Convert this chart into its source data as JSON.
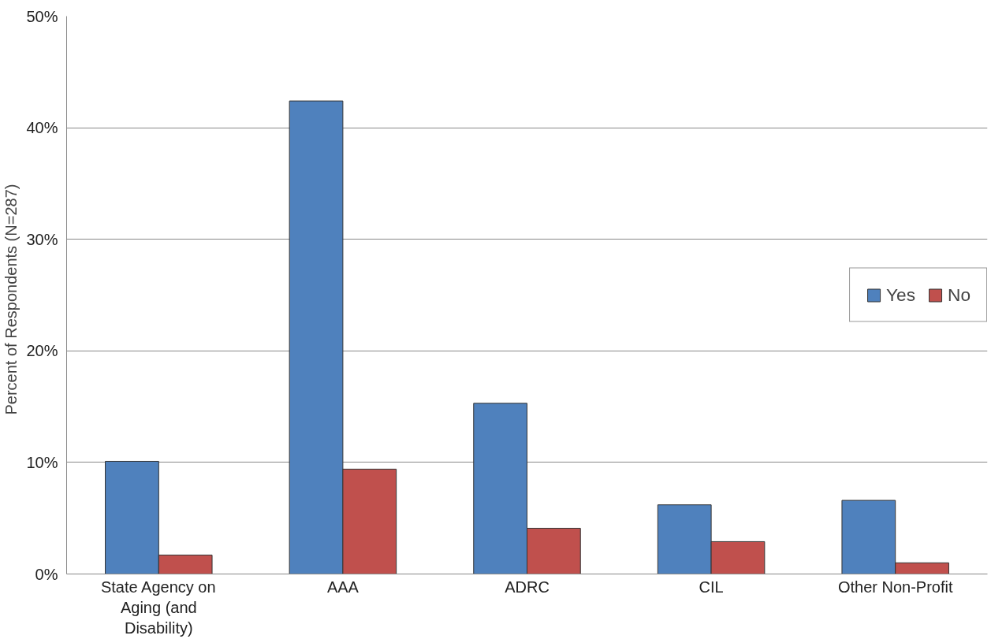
{
  "chart_data": {
    "type": "bar",
    "ylabel": "Percent of Respondents   (N=287)",
    "categories": [
      "State Agency on Aging (and Disability)",
      "AAA",
      "ADRC",
      "CIL",
      "Other Non-Profit"
    ],
    "series": [
      {
        "name": "Yes",
        "color": "#4f81bd",
        "values": [
          10.1,
          42.4,
          15.3,
          6.2,
          6.6
        ]
      },
      {
        "name": "No",
        "color": "#c0504d",
        "values": [
          1.7,
          9.4,
          4.1,
          2.9,
          1.0
        ]
      }
    ],
    "ylim": [
      0,
      50
    ],
    "yticks": [
      {
        "value": 0,
        "label": "0%"
      },
      {
        "value": 10,
        "label": "10%"
      },
      {
        "value": 20,
        "label": "20%"
      },
      {
        "value": 30,
        "label": "30%"
      },
      {
        "value": 40,
        "label": "40%"
      },
      {
        "value": 50,
        "label": "50%"
      }
    ],
    "grid": "y",
    "legend": "right"
  }
}
